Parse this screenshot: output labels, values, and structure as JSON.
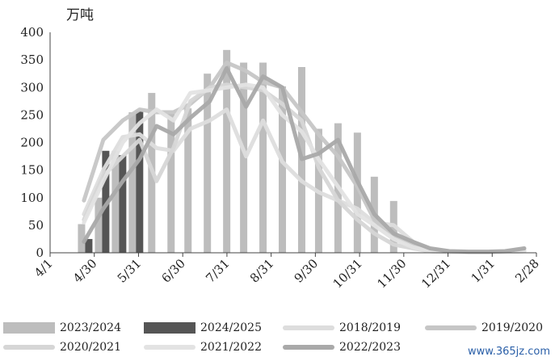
{
  "chart_data": {
    "type": "bar",
    "unit_label": "万吨",
    "ylim": [
      0,
      400
    ],
    "y_ticks": [
      0,
      50,
      100,
      150,
      200,
      250,
      300,
      350,
      400
    ],
    "x_tick_labels": [
      "4/1",
      "4/30",
      "5/31",
      "6/30",
      "7/31",
      "8/31",
      "9/30",
      "10/31",
      "11/30",
      "12/31",
      "1/31",
      "2/28"
    ],
    "bar_series": [
      {
        "name": "2023/2024",
        "color": "#bdbdbd",
        "values": [
          {
            "x": 13,
            "y": 52
          },
          {
            "x": 20,
            "y": 100
          },
          {
            "x": 27,
            "y": 185
          },
          {
            "x": 34,
            "y": 255
          },
          {
            "x": 42,
            "y": 290
          },
          {
            "x": 50,
            "y": 252
          },
          {
            "x": 57,
            "y": 262
          },
          {
            "x": 65,
            "y": 325
          },
          {
            "x": 73,
            "y": 368
          },
          {
            "x": 80,
            "y": 345
          },
          {
            "x": 88,
            "y": 345
          },
          {
            "x": 96,
            "y": 302
          },
          {
            "x": 104,
            "y": 337
          },
          {
            "x": 111,
            "y": 225
          },
          {
            "x": 119,
            "y": 235
          },
          {
            "x": 127,
            "y": 218
          },
          {
            "x": 134,
            "y": 138
          },
          {
            "x": 142,
            "y": 94
          }
        ]
      },
      {
        "name": "2024/2025",
        "color": "#555555",
        "values": [
          {
            "x": 16,
            "y": 25
          },
          {
            "x": 23,
            "y": 185
          },
          {
            "x": 30,
            "y": 177
          },
          {
            "x": 37,
            "y": 257
          }
        ]
      }
    ],
    "line_series": [
      {
        "name": "2018/2019",
        "color": "#dddddd",
        "values": [
          {
            "x": 14,
            "y": 70
          },
          {
            "x": 22,
            "y": 150
          },
          {
            "x": 30,
            "y": 210
          },
          {
            "x": 37,
            "y": 215
          },
          {
            "x": 44,
            "y": 190
          },
          {
            "x": 51,
            "y": 185
          },
          {
            "x": 58,
            "y": 225
          },
          {
            "x": 66,
            "y": 240
          },
          {
            "x": 73,
            "y": 260
          },
          {
            "x": 81,
            "y": 175
          },
          {
            "x": 88,
            "y": 240
          },
          {
            "x": 96,
            "y": 165
          },
          {
            "x": 104,
            "y": 130
          },
          {
            "x": 111,
            "y": 110
          },
          {
            "x": 119,
            "y": 95
          },
          {
            "x": 127,
            "y": 80
          },
          {
            "x": 134,
            "y": 55
          },
          {
            "x": 142,
            "y": 50
          },
          {
            "x": 150,
            "y": 20
          },
          {
            "x": 157,
            "y": 5
          },
          {
            "x": 165,
            "y": 2
          },
          {
            "x": 173,
            "y": 1
          },
          {
            "x": 181,
            "y": 1
          },
          {
            "x": 188,
            "y": 2
          },
          {
            "x": 196,
            "y": 3
          }
        ]
      },
      {
        "name": "2019/2020",
        "color": "#c6c6c6",
        "values": [
          {
            "x": 14,
            "y": 95
          },
          {
            "x": 22,
            "y": 205
          },
          {
            "x": 30,
            "y": 240
          },
          {
            "x": 37,
            "y": 260
          },
          {
            "x": 44,
            "y": 255
          },
          {
            "x": 51,
            "y": 255
          },
          {
            "x": 58,
            "y": 270
          },
          {
            "x": 66,
            "y": 300
          },
          {
            "x": 73,
            "y": 345
          },
          {
            "x": 81,
            "y": 330
          },
          {
            "x": 88,
            "y": 310
          },
          {
            "x": 96,
            "y": 300
          },
          {
            "x": 104,
            "y": 255
          },
          {
            "x": 111,
            "y": 215
          },
          {
            "x": 119,
            "y": 175
          },
          {
            "x": 127,
            "y": 120
          },
          {
            "x": 134,
            "y": 60
          },
          {
            "x": 142,
            "y": 30
          },
          {
            "x": 150,
            "y": 15
          },
          {
            "x": 157,
            "y": 5
          },
          {
            "x": 165,
            "y": 2
          },
          {
            "x": 173,
            "y": 1
          },
          {
            "x": 181,
            "y": 1
          },
          {
            "x": 188,
            "y": 2
          },
          {
            "x": 196,
            "y": 4
          }
        ]
      },
      {
        "name": "2020/2021",
        "color": "#d6d6d6",
        "values": [
          {
            "x": 14,
            "y": 60
          },
          {
            "x": 22,
            "y": 140
          },
          {
            "x": 30,
            "y": 175
          },
          {
            "x": 37,
            "y": 205
          },
          {
            "x": 44,
            "y": 130
          },
          {
            "x": 51,
            "y": 190
          },
          {
            "x": 58,
            "y": 275
          },
          {
            "x": 66,
            "y": 300
          },
          {
            "x": 73,
            "y": 305
          },
          {
            "x": 81,
            "y": 300
          },
          {
            "x": 88,
            "y": 295
          },
          {
            "x": 96,
            "y": 270
          },
          {
            "x": 104,
            "y": 240
          },
          {
            "x": 111,
            "y": 155
          },
          {
            "x": 119,
            "y": 95
          },
          {
            "x": 127,
            "y": 60
          },
          {
            "x": 134,
            "y": 35
          },
          {
            "x": 142,
            "y": 15
          },
          {
            "x": 150,
            "y": 8
          },
          {
            "x": 157,
            "y": 3
          },
          {
            "x": 165,
            "y": 2
          },
          {
            "x": 173,
            "y": 1
          },
          {
            "x": 181,
            "y": 1
          },
          {
            "x": 188,
            "y": 2
          },
          {
            "x": 196,
            "y": 3
          }
        ]
      },
      {
        "name": "2021/2022",
        "color": "#e3e3e3",
        "values": [
          {
            "x": 14,
            "y": 55
          },
          {
            "x": 22,
            "y": 130
          },
          {
            "x": 30,
            "y": 200
          },
          {
            "x": 37,
            "y": 235
          },
          {
            "x": 44,
            "y": 260
          },
          {
            "x": 51,
            "y": 240
          },
          {
            "x": 58,
            "y": 290
          },
          {
            "x": 66,
            "y": 295
          },
          {
            "x": 73,
            "y": 300
          },
          {
            "x": 81,
            "y": 305
          },
          {
            "x": 88,
            "y": 300
          },
          {
            "x": 96,
            "y": 250
          },
          {
            "x": 104,
            "y": 220
          },
          {
            "x": 111,
            "y": 170
          },
          {
            "x": 119,
            "y": 120
          },
          {
            "x": 127,
            "y": 70
          },
          {
            "x": 134,
            "y": 50
          },
          {
            "x": 142,
            "y": 25
          },
          {
            "x": 150,
            "y": 10
          },
          {
            "x": 157,
            "y": 3
          },
          {
            "x": 165,
            "y": 1
          },
          {
            "x": 173,
            "y": 1
          },
          {
            "x": 181,
            "y": 1
          },
          {
            "x": 188,
            "y": 2
          },
          {
            "x": 196,
            "y": 3
          }
        ]
      },
      {
        "name": "2022/2023",
        "color": "#a9a9a9",
        "values": [
          {
            "x": 14,
            "y": 20
          },
          {
            "x": 22,
            "y": 80
          },
          {
            "x": 30,
            "y": 130
          },
          {
            "x": 37,
            "y": 170
          },
          {
            "x": 44,
            "y": 230
          },
          {
            "x": 51,
            "y": 215
          },
          {
            "x": 58,
            "y": 245
          },
          {
            "x": 66,
            "y": 275
          },
          {
            "x": 73,
            "y": 335
          },
          {
            "x": 81,
            "y": 265
          },
          {
            "x": 88,
            "y": 320
          },
          {
            "x": 96,
            "y": 300
          },
          {
            "x": 104,
            "y": 170
          },
          {
            "x": 111,
            "y": 180
          },
          {
            "x": 119,
            "y": 205
          },
          {
            "x": 127,
            "y": 130
          },
          {
            "x": 134,
            "y": 70
          },
          {
            "x": 142,
            "y": 35
          },
          {
            "x": 150,
            "y": 20
          },
          {
            "x": 157,
            "y": 8
          },
          {
            "x": 165,
            "y": 3
          },
          {
            "x": 173,
            "y": 2
          },
          {
            "x": 181,
            "y": 2
          },
          {
            "x": 188,
            "y": 3
          },
          {
            "x": 196,
            "y": 8
          }
        ]
      }
    ],
    "legend_position": "bottom"
  },
  "watermark": "www.365jz.com"
}
